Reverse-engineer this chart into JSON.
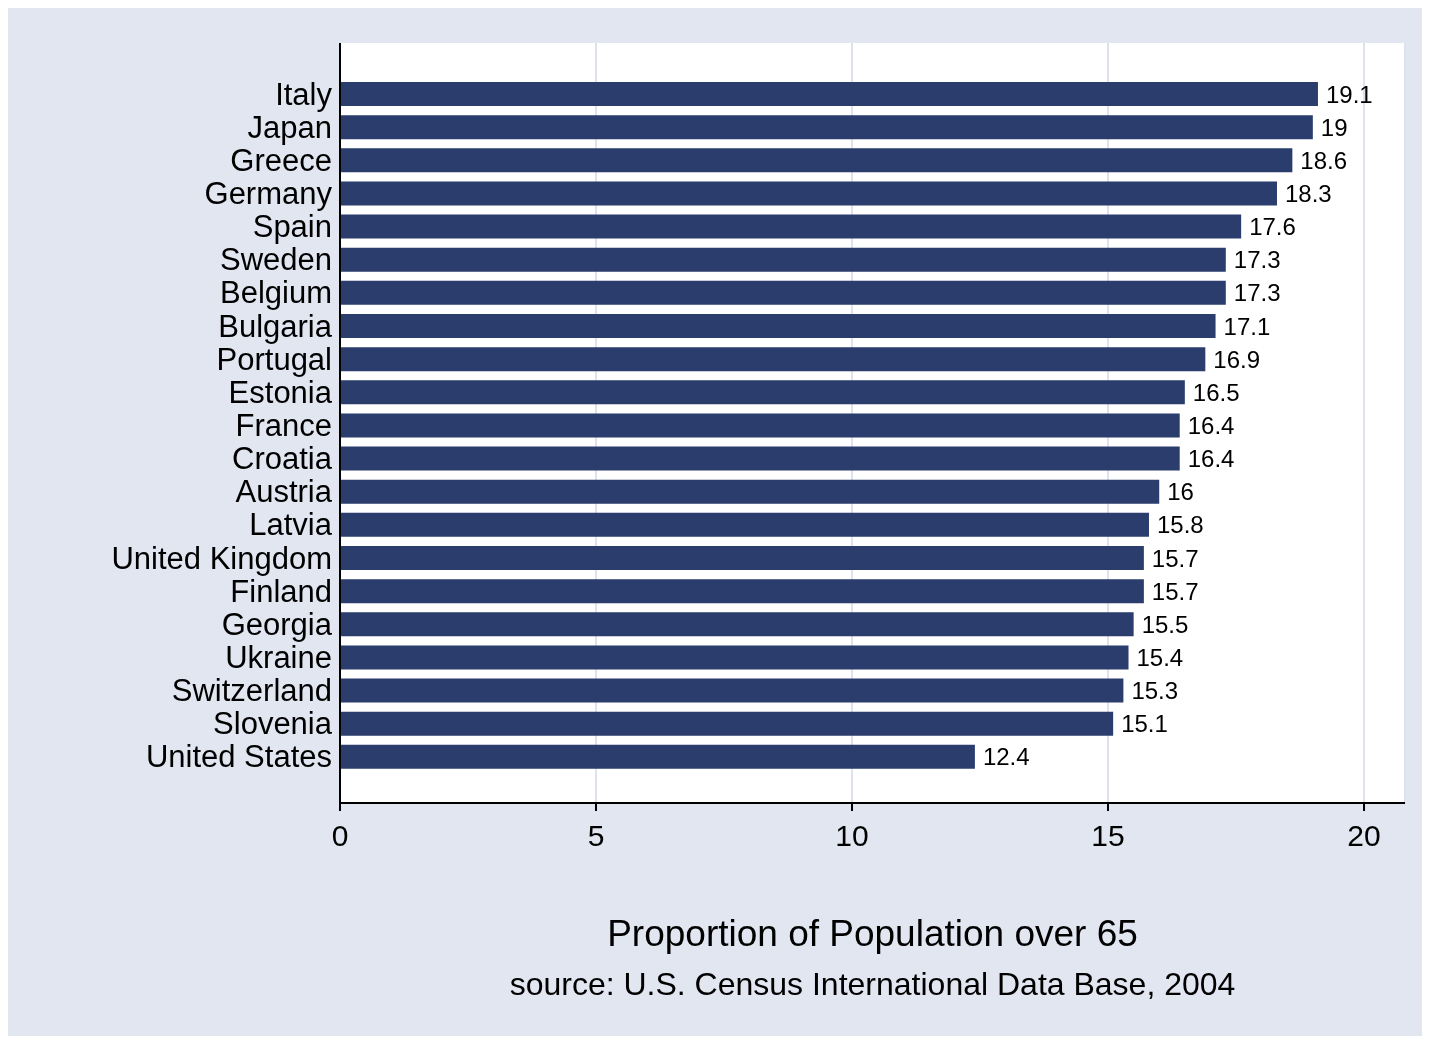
{
  "chart_data": {
    "type": "bar",
    "orientation": "horizontal",
    "categories": [
      "Italy",
      "Japan",
      "Greece",
      "Germany",
      "Spain",
      "Sweden",
      "Belgium",
      "Bulgaria",
      "Portugal",
      "Estonia",
      "France",
      "Croatia",
      "Austria",
      "Latvia",
      "United Kingdom",
      "Finland",
      "Georgia",
      "Ukraine",
      "Switzerland",
      "Slovenia",
      "United States"
    ],
    "values": [
      19.1,
      19,
      18.6,
      18.3,
      17.6,
      17.3,
      17.3,
      17.1,
      16.9,
      16.5,
      16.4,
      16.4,
      16,
      15.8,
      15.7,
      15.7,
      15.5,
      15.4,
      15.3,
      15.1,
      12.4
    ],
    "color": "#2a3d6d",
    "xlim": [
      0,
      20.8
    ],
    "xticks": [
      0,
      5,
      10,
      15,
      20
    ],
    "grid": "x",
    "data_labels": true,
    "legend": false,
    "xlabel": "Proportion of Population over 65",
    "annotations": [
      "source: U.S. Census International Data Base, 2004"
    ]
  }
}
